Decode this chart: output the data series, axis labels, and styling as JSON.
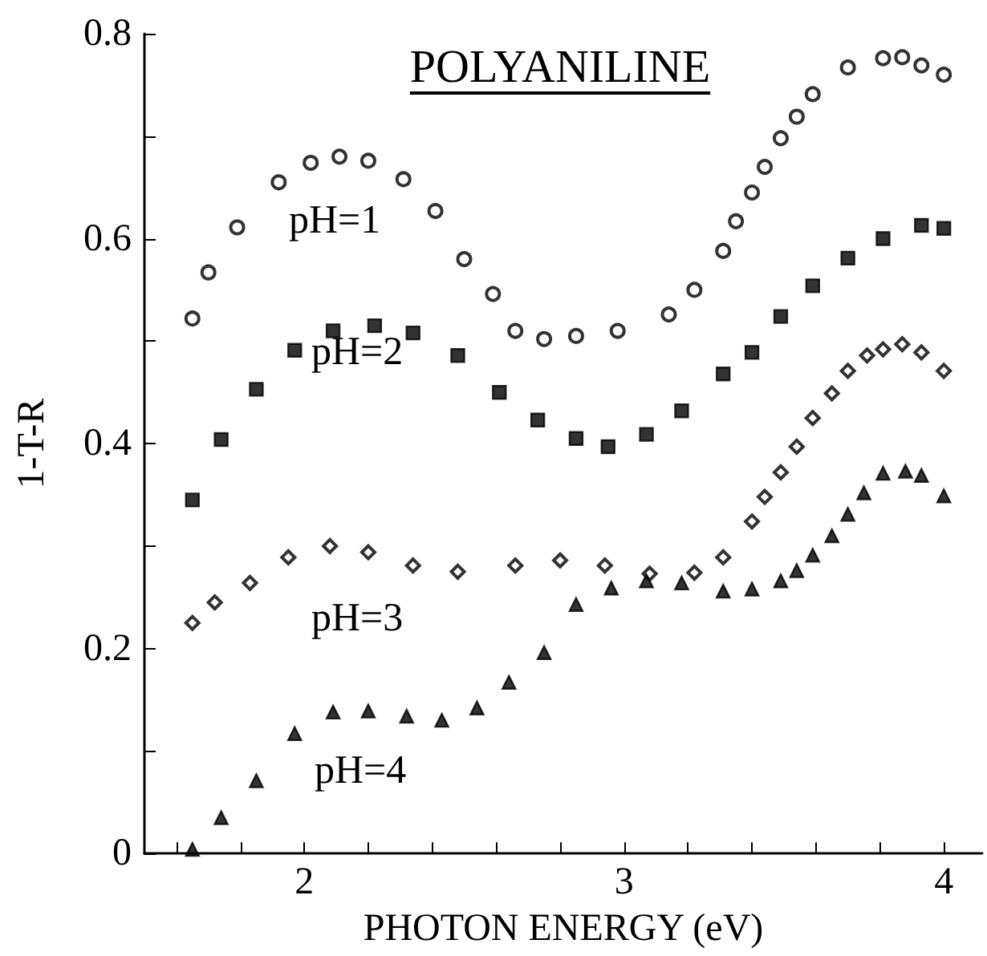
{
  "chart_data": {
    "type": "scatter",
    "title": "POLYANILINE",
    "xlabel": "PHOTON ENERGY (eV)",
    "ylabel": "1-T-R",
    "xlim": [
      1.5,
      4.12
    ],
    "xticks": [
      {
        "value": 1.6,
        "label": null
      },
      {
        "value": 1.8,
        "label": null
      },
      2,
      {
        "value": 2.2,
        "label": null
      },
      {
        "value": 2.4,
        "label": null
      },
      {
        "value": 2.6,
        "label": null
      },
      {
        "value": 2.8,
        "label": null
      },
      3,
      {
        "value": 3.2,
        "label": null
      },
      {
        "value": 3.4,
        "label": null
      },
      {
        "value": 3.6,
        "label": null
      },
      {
        "value": 3.8,
        "label": null
      },
      4
    ],
    "ylim": [
      0,
      0.8
    ],
    "yticks": [
      0,
      {
        "value": 0.1,
        "label": null
      },
      0.2,
      {
        "value": 0.3,
        "label": null
      },
      0.4,
      {
        "value": 0.5,
        "label": null
      },
      0.6,
      {
        "value": 0.7,
        "label": null
      },
      0.8
    ],
    "grid": false,
    "legend": false,
    "series": [
      {
        "name": "pH=1",
        "color": "#000000",
        "marker": "circle",
        "x": [
          1.65,
          1.7,
          1.79,
          1.92,
          2.02,
          2.11,
          2.2,
          2.31,
          2.41,
          2.5,
          2.59,
          2.66,
          2.75,
          2.85,
          2.98,
          3.14,
          3.22,
          3.31,
          3.35,
          3.4,
          3.44,
          3.49,
          3.54,
          3.59,
          3.7,
          3.81,
          3.87,
          3.93,
          4.0
        ],
        "values": [
          0.522,
          0.567,
          0.611,
          0.655,
          0.674,
          0.68,
          0.676,
          0.658,
          0.627,
          0.58,
          0.546,
          0.51,
          0.502,
          0.505,
          0.51,
          0.526,
          0.55,
          0.588,
          0.617,
          0.645,
          0.67,
          0.698,
          0.719,
          0.741,
          0.767,
          0.776,
          0.777,
          0.769,
          0.76
        ]
      },
      {
        "name": "pH=2",
        "color": "#000000",
        "marker": "square",
        "x": [
          1.65,
          1.74,
          1.85,
          1.97,
          2.09,
          2.22,
          2.34,
          2.48,
          2.61,
          2.73,
          2.85,
          2.95,
          3.07,
          3.18,
          3.31,
          3.4,
          3.49,
          3.59,
          3.7,
          3.81,
          3.93,
          4.0
        ],
        "values": [
          0.345,
          0.404,
          0.453,
          0.491,
          0.51,
          0.515,
          0.508,
          0.486,
          0.45,
          0.423,
          0.405,
          0.397,
          0.409,
          0.432,
          0.468,
          0.489,
          0.524,
          0.554,
          0.581,
          0.6,
          0.613,
          0.61
        ]
      },
      {
        "name": "pH=3",
        "color": "#000000",
        "marker": "diamond",
        "x": [
          1.65,
          1.72,
          1.83,
          1.95,
          2.08,
          2.2,
          2.34,
          2.48,
          2.66,
          2.8,
          2.94,
          3.08,
          3.22,
          3.31,
          3.4,
          3.44,
          3.49,
          3.54,
          3.59,
          3.65,
          3.7,
          3.76,
          3.81,
          3.87,
          3.93,
          4.0
        ],
        "values": [
          0.225,
          0.245,
          0.264,
          0.289,
          0.3,
          0.294,
          0.281,
          0.275,
          0.281,
          0.286,
          0.281,
          0.273,
          0.274,
          0.289,
          0.324,
          0.348,
          0.372,
          0.397,
          0.425,
          0.449,
          0.471,
          0.486,
          0.492,
          0.497,
          0.489,
          0.471
        ]
      },
      {
        "name": "pH=4",
        "color": "#000000",
        "marker": "triangle",
        "x": [
          1.65,
          1.74,
          1.85,
          1.97,
          2.09,
          2.2,
          2.32,
          2.43,
          2.54,
          2.64,
          2.75,
          2.85,
          2.96,
          3.07,
          3.18,
          3.31,
          3.4,
          3.49,
          3.54,
          3.59,
          3.65,
          3.7,
          3.75,
          3.81,
          3.88,
          3.93,
          4.0
        ],
        "values": [
          0.004,
          0.035,
          0.071,
          0.117,
          0.138,
          0.139,
          0.134,
          0.13,
          0.142,
          0.167,
          0.196,
          0.243,
          0.259,
          0.266,
          0.264,
          0.256,
          0.258,
          0.266,
          0.276,
          0.291,
          0.31,
          0.331,
          0.352,
          0.371,
          0.373,
          0.369,
          0.349
        ]
      }
    ]
  }
}
